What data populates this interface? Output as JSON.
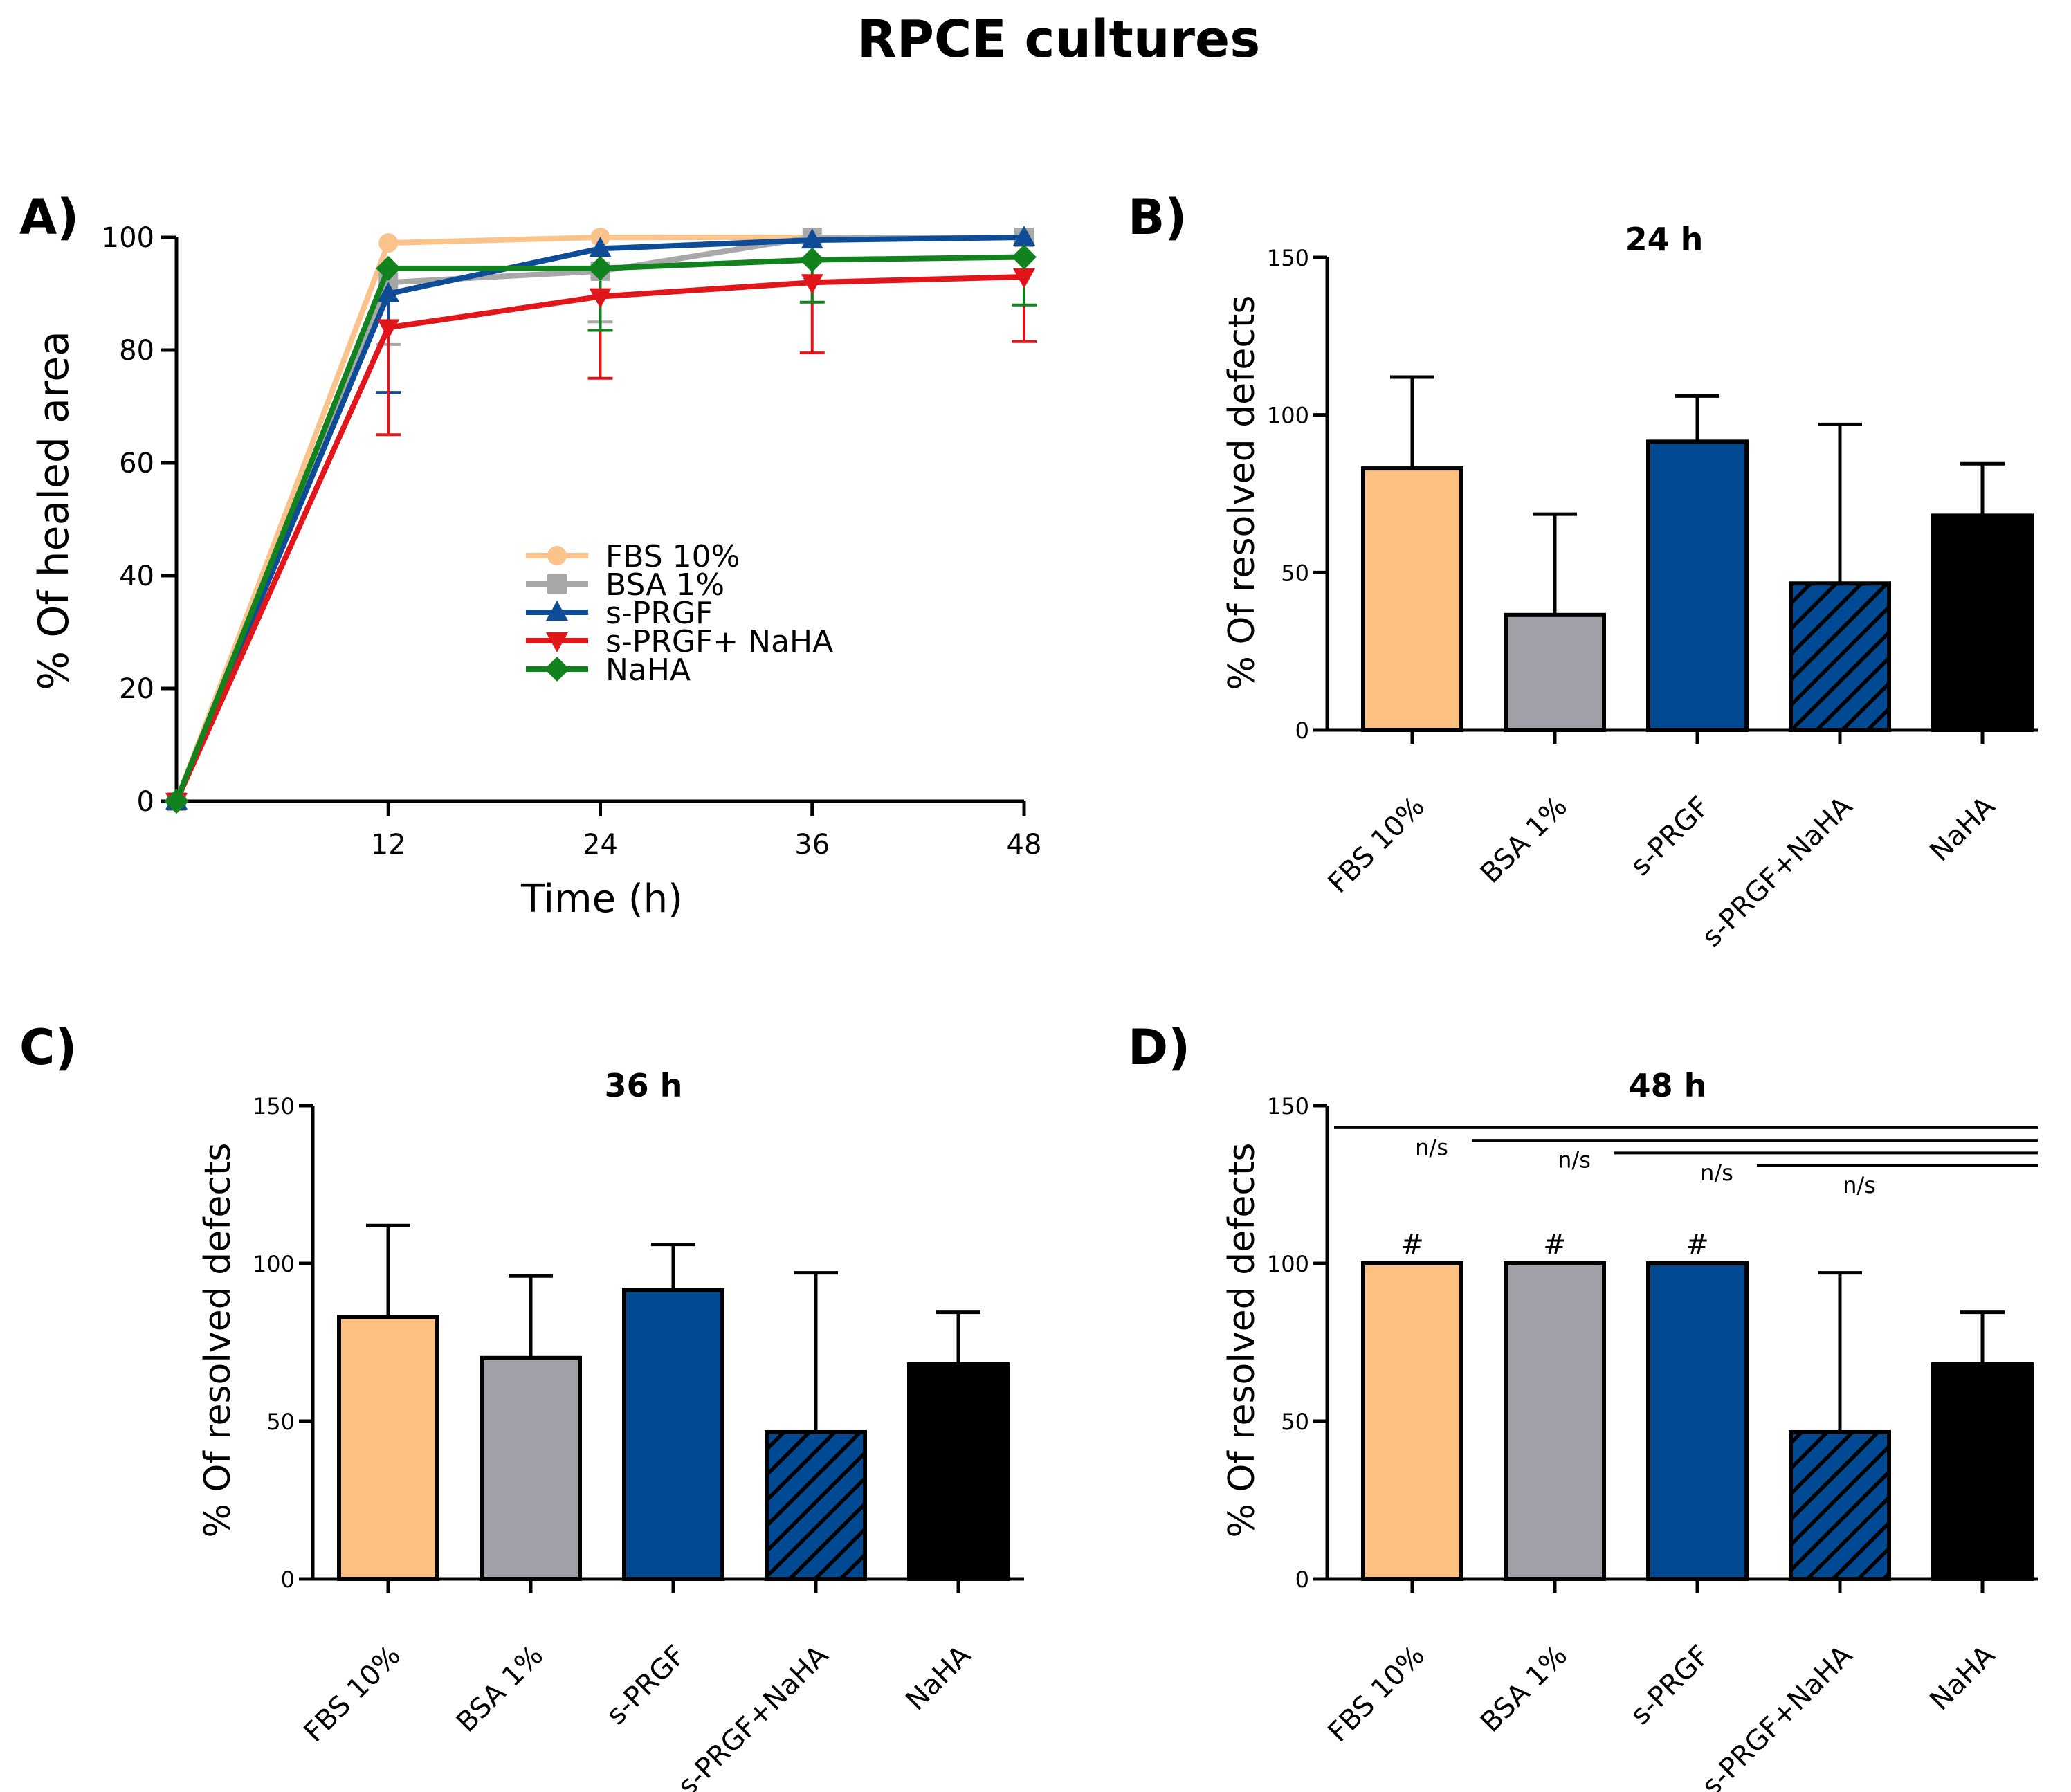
{
  "title": "RPCE cultures",
  "colors": {
    "fbs": "#FFC080",
    "bsa": "#A0A0A8",
    "sprgf": "#004A93",
    "sprgf_naha": "#004A93",
    "naha_bar": "#000000",
    "line_fbs": "#FBC38C",
    "line_bsa": "#A8A8A8",
    "line_sprgf": "#0E4C98",
    "line_sprgf_naha": "#E0161B",
    "line_naha": "#11821E"
  },
  "chart_data": [
    {
      "panel": "A)",
      "type": "line",
      "title": "",
      "xlabel": "Time (h)",
      "ylabel": "% Of healed area",
      "x": [
        0,
        12,
        24,
        36,
        48
      ],
      "x_ticks": [
        "12",
        "24",
        "36",
        "48"
      ],
      "x_tick_values": [
        12,
        24,
        36,
        48
      ],
      "xlim": [
        0,
        48
      ],
      "ylim": [
        0,
        100
      ],
      "y_ticks": [
        "0",
        "20",
        "40",
        "60",
        "80",
        "100"
      ],
      "y_tick_values": [
        0,
        20,
        40,
        60,
        80,
        100
      ],
      "legend_position": "center",
      "series": [
        {
          "name": "FBS 10%",
          "color": "#FBC38C",
          "marker": "circle",
          "values": [
            0,
            99,
            100,
            100,
            100
          ],
          "err_low": [
            0,
            0,
            0,
            0,
            0
          ],
          "err_high": [
            0,
            0,
            0,
            0,
            0
          ]
        },
        {
          "name": "BSA 1%",
          "color": "#A8A8A8",
          "marker": "square",
          "values": [
            0,
            92,
            94,
            100,
            100
          ],
          "err_low": [
            0,
            11,
            9,
            0,
            0
          ],
          "err_high": [
            0,
            0,
            0,
            0,
            0
          ]
        },
        {
          "name": "s-PRGF",
          "color": "#0E4C98",
          "marker": "triangle-up",
          "values": [
            0,
            90,
            98,
            99.5,
            100
          ],
          "err_low": [
            0,
            17.5,
            0,
            0,
            0
          ],
          "err_high": [
            0,
            0,
            0,
            0,
            0
          ]
        },
        {
          "name": "s-PRGF+ NaHA",
          "color": "#E0161B",
          "marker": "triangle-down",
          "values": [
            0,
            84,
            89.5,
            92,
            93
          ],
          "err_low": [
            0,
            19,
            14.5,
            12.5,
            11.5
          ],
          "err_high": [
            0,
            0,
            0,
            0,
            0
          ]
        },
        {
          "name": "NaHA",
          "color": "#11821E",
          "marker": "diamond",
          "values": [
            0,
            94.5,
            94.5,
            96,
            96.5
          ],
          "err_low": [
            0,
            0,
            11,
            7.5,
            8.5
          ],
          "err_high": [
            0,
            0,
            0,
            0,
            0
          ]
        }
      ]
    },
    {
      "panel": "B)",
      "type": "bar",
      "title": "24 h",
      "xlabel": "",
      "ylabel": "% Of resolved defects",
      "categories": [
        "FBS 10%",
        "BSA 1%",
        "s-PRGF",
        "s-PRGF+NaHA",
        "NaHA"
      ],
      "values": [
        83,
        36.5,
        91.5,
        46.5,
        68
      ],
      "errors": [
        29,
        32,
        14.5,
        50.5,
        16.5
      ],
      "ylim": [
        0,
        150
      ],
      "y_ticks": [
        "0",
        "50",
        "100",
        "150"
      ],
      "y_tick_values": [
        0,
        50,
        100,
        150
      ],
      "hatched": [
        false,
        false,
        false,
        true,
        false
      ],
      "bar_colors": [
        "#FFC080",
        "#A0A0A8",
        "#004A93",
        "#004A93",
        "#000000"
      ]
    },
    {
      "panel": "C)",
      "type": "bar",
      "title": "36 h",
      "xlabel": "",
      "ylabel": "% Of resolved defects",
      "categories": [
        "FBS 10%",
        "BSA 1%",
        "s-PRGF",
        "s-PRGF+NaHA",
        "NaHA"
      ],
      "values": [
        83,
        70,
        91.5,
        46.5,
        68
      ],
      "errors": [
        29,
        26,
        14.5,
        50.5,
        16.5
      ],
      "ylim": [
        0,
        150
      ],
      "y_ticks": [
        "0",
        "50",
        "100",
        "150"
      ],
      "y_tick_values": [
        0,
        50,
        100,
        150
      ],
      "hatched": [
        false,
        false,
        false,
        true,
        false
      ],
      "bar_colors": [
        "#FFC080",
        "#A0A0A8",
        "#004A93",
        "#004A93",
        "#000000"
      ]
    },
    {
      "panel": "D)",
      "type": "bar",
      "title": "48 h",
      "xlabel": "",
      "ylabel": "% Of resolved defects",
      "categories": [
        "FBS 10%",
        "BSA 1%",
        "s-PRGF",
        "s-PRGF+NaHA",
        "NaHA"
      ],
      "values": [
        100,
        100,
        100,
        46.5,
        68
      ],
      "errors": [
        0,
        0,
        0,
        50.5,
        16.5
      ],
      "ylim": [
        0,
        150
      ],
      "y_ticks": [
        "0",
        "50",
        "100",
        "150"
      ],
      "y_tick_values": [
        0,
        50,
        100,
        150
      ],
      "hatched": [
        false,
        false,
        false,
        true,
        false
      ],
      "bar_colors": [
        "#FFC080",
        "#A0A0A8",
        "#004A93",
        "#004A93",
        "#000000"
      ],
      "bar_marks": [
        "#",
        "#",
        "#",
        "",
        ""
      ],
      "significance": [
        {
          "from": 0,
          "to": 4,
          "y": 143,
          "label": "n/s",
          "label_value": 137
        },
        {
          "from": 1,
          "to": 4,
          "y": 139,
          "label": "n/s",
          "label_value": 133
        },
        {
          "from": 2,
          "to": 4,
          "y": 135,
          "label": "n/s",
          "label_value": 129
        },
        {
          "from": 3,
          "to": 4,
          "y": 131,
          "label": "n/s",
          "label_value": 125
        }
      ]
    }
  ]
}
